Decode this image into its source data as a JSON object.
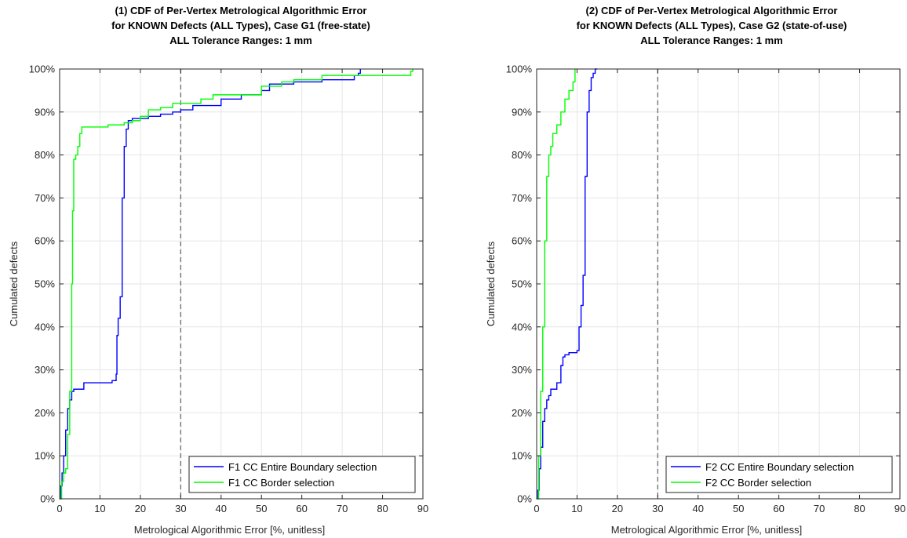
{
  "chart_data": [
    {
      "type": "line",
      "title": [
        "(1)  CDF of Per-Vertex Metrological Algorithmic Error",
        "for KNOWN Defects (ALL Types),  Case G1 (free-state)",
        "ALL Tolerance Ranges: 1 mm"
      ],
      "xlabel": "Metrological Algorithmic Error [%, unitless]",
      "ylabel": "Cumulated defects",
      "xlim": [
        0,
        90
      ],
      "ylim": [
        0,
        100
      ],
      "xticks": [
        "0",
        "10",
        "20",
        "30",
        "40",
        "50",
        "60",
        "70",
        "80",
        "90"
      ],
      "yticks": [
        "0%",
        "10%",
        "20%",
        "30%",
        "40%",
        "50%",
        "60%",
        "70%",
        "80%",
        "90%",
        "100%"
      ],
      "grid": true,
      "legend_position": "bottom-right",
      "reference_line": {
        "x": 30,
        "style": "dashed",
        "color": "#606060"
      },
      "series": [
        {
          "name": "F1 CC Entire Boundary selection",
          "color": "#0000ff",
          "x": [
            0,
            0.3,
            0.6,
            1,
            1.5,
            2,
            2.5,
            3,
            3.5,
            4,
            5,
            6,
            7,
            8,
            10,
            12,
            13,
            14,
            14.2,
            14.5,
            15,
            15.5,
            16,
            16.5,
            17,
            18,
            20,
            22,
            25,
            28,
            30,
            33,
            40,
            45,
            50,
            52,
            58,
            65,
            70,
            73,
            74,
            74.5
          ],
          "y": [
            0,
            3,
            6,
            10,
            16,
            21,
            23,
            25,
            25.5,
            25.5,
            25.5,
            27,
            27,
            27,
            27,
            27,
            27.5,
            29,
            38,
            42,
            47,
            70,
            82,
            86,
            88,
            88.5,
            88.5,
            89,
            89.5,
            90,
            90.5,
            91.5,
            93,
            94,
            95,
            96.5,
            97,
            97.5,
            97.5,
            98.5,
            99,
            100
          ]
        },
        {
          "name": "F1 CC Border selection",
          "color": "#00ff00",
          "x": [
            0,
            0.5,
            1,
            1.5,
            2,
            2.5,
            3,
            3.2,
            3.5,
            4,
            4.5,
            5,
            5.5,
            6,
            8,
            10,
            12,
            14,
            16,
            18,
            20,
            22,
            25,
            28,
            30,
            35,
            38,
            45,
            50,
            55,
            58,
            65,
            75,
            85,
            87,
            87.5
          ],
          "y": [
            0,
            4,
            6,
            7,
            15,
            25,
            50,
            67,
            79,
            80,
            82,
            85,
            86.5,
            86.5,
            86.5,
            86.5,
            87,
            87,
            87.5,
            88,
            89,
            90.5,
            91,
            92,
            92,
            93,
            94,
            94,
            96,
            97,
            97.5,
            98.5,
            98.5,
            98.5,
            99.5,
            100
          ]
        }
      ]
    },
    {
      "type": "line",
      "title": [
        "(2)  CDF of Per-Vertex Metrological Algorithmic Error",
        "for KNOWN Defects (ALL Types),  Case G2 (state-of-use)",
        "ALL Tolerance Ranges: 1 mm"
      ],
      "xlabel": "Metrological Algorithmic Error [%, unitless]",
      "ylabel": "Cumulated defects",
      "xlim": [
        0,
        90
      ],
      "ylim": [
        0,
        100
      ],
      "xticks": [
        "0",
        "10",
        "20",
        "30",
        "40",
        "50",
        "60",
        "70",
        "80",
        "90"
      ],
      "yticks": [
        "0%",
        "10%",
        "20%",
        "30%",
        "40%",
        "50%",
        "60%",
        "70%",
        "80%",
        "90%",
        "100%"
      ],
      "grid": true,
      "legend_position": "bottom-right",
      "reference_line": {
        "x": 30,
        "style": "dashed",
        "color": "#606060"
      },
      "series": [
        {
          "name": "F2 CC Entire Boundary selection",
          "color": "#0000ff",
          "x": [
            0,
            0.3,
            0.6,
            1,
            1.5,
            2,
            2.5,
            3,
            3.5,
            4,
            4.5,
            5,
            6,
            6.5,
            7,
            8,
            9,
            10,
            10.5,
            11,
            11.5,
            12,
            12.5,
            13,
            13.5,
            14,
            14.5,
            15
          ],
          "y": [
            0,
            2,
            7,
            12,
            18,
            21,
            23,
            24,
            25.5,
            25.5,
            25.5,
            27,
            31,
            33,
            33.5,
            34,
            34,
            34.5,
            40,
            45,
            52,
            75,
            90,
            95,
            98,
            99,
            100,
            100
          ]
        },
        {
          "name": "F2 CC Border selection",
          "color": "#00ff00",
          "x": [
            0,
            0.5,
            1,
            1.5,
            2,
            2.5,
            3,
            3.5,
            4,
            5,
            6,
            7,
            8,
            9,
            9.5
          ],
          "y": [
            0,
            10,
            25,
            40,
            60,
            75,
            80,
            82,
            85,
            87,
            90,
            93,
            95,
            97,
            100
          ]
        }
      ]
    }
  ]
}
